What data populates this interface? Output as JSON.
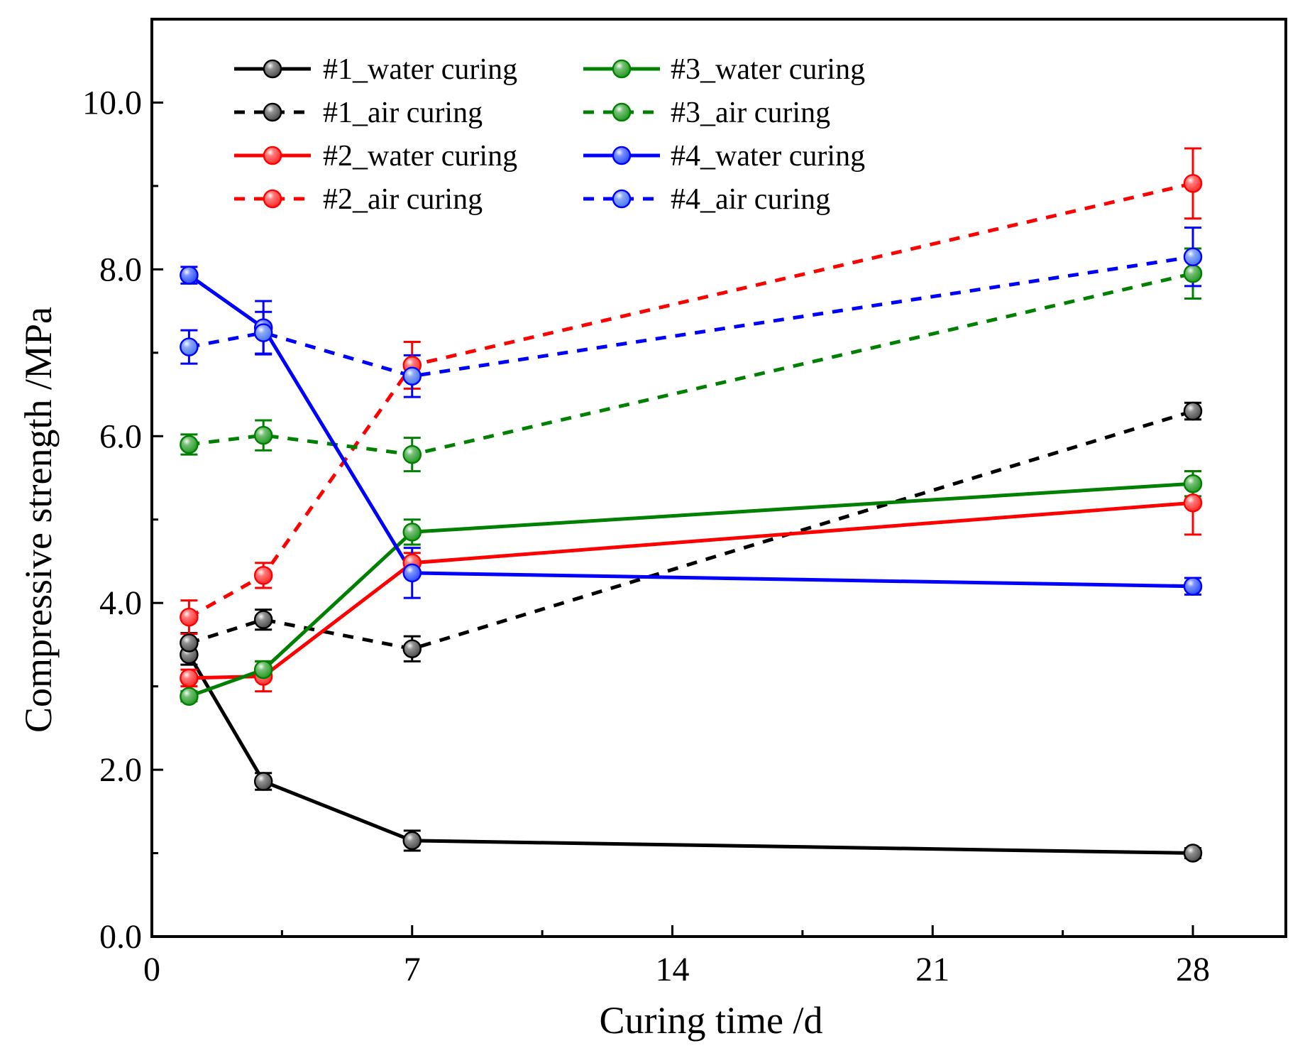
{
  "chart_data": {
    "type": "line",
    "title": "",
    "xlabel": "Curing time /d",
    "ylabel": "Compressive strength /MPa",
    "xlim": [
      0,
      30.5
    ],
    "ylim": [
      0,
      11
    ],
    "xticks": [
      0,
      7,
      14,
      21,
      28
    ],
    "xtick_labels": [
      "0",
      "7",
      "14",
      "21",
      "28"
    ],
    "xminor": [
      3.5,
      10.5,
      17.5,
      24.5
    ],
    "yticks": [
      0,
      2,
      4,
      6,
      8,
      10
    ],
    "ytick_labels": [
      "0.0",
      "2.0",
      "4.0",
      "6.0",
      "8.0",
      "10.0"
    ],
    "yminor": [
      1,
      3,
      5,
      7,
      9
    ],
    "grid": false,
    "legend_position": "top-left",
    "series": [
      {
        "name": "#1_water curing",
        "color": "#000000",
        "marker": "#555555",
        "style": "solid",
        "x": [
          1,
          3,
          7,
          28
        ],
        "y": [
          3.38,
          1.86,
          1.15,
          1.0
        ],
        "err": [
          0.12,
          0.1,
          0.12,
          0.06
        ]
      },
      {
        "name": "#1_air curing",
        "color": "#000000",
        "marker": "#555555",
        "style": "dotted",
        "x": [
          1,
          3,
          7,
          28
        ],
        "y": [
          3.52,
          3.8,
          3.45,
          6.3
        ],
        "err": [
          0.12,
          0.12,
          0.15,
          0.1
        ]
      },
      {
        "name": "#2_water curing",
        "color": "#ff0000",
        "marker": "#ff3333",
        "style": "solid",
        "x": [
          1,
          3,
          7,
          28
        ],
        "y": [
          3.1,
          3.12,
          4.48,
          5.2
        ],
        "err": [
          0.1,
          0.18,
          0.12,
          0.38
        ]
      },
      {
        "name": "#2_air curing",
        "color": "#ff0000",
        "marker": "#ff3333",
        "style": "dotted",
        "x": [
          1,
          3,
          7,
          28
        ],
        "y": [
          3.83,
          4.33,
          6.85,
          9.03
        ],
        "err": [
          0.2,
          0.15,
          0.28,
          0.42
        ]
      },
      {
        "name": "#3_water curing",
        "color": "#008000",
        "marker": "#2e9e2e",
        "style": "solid",
        "x": [
          1,
          3,
          7,
          28
        ],
        "y": [
          2.88,
          3.2,
          4.85,
          5.43
        ],
        "err": [
          0.06,
          0.1,
          0.15,
          0.15
        ]
      },
      {
        "name": "#3_air curing",
        "color": "#008000",
        "marker": "#2e9e2e",
        "style": "dotted",
        "x": [
          1,
          3,
          7,
          28
        ],
        "y": [
          5.9,
          6.01,
          5.78,
          7.95
        ],
        "err": [
          0.12,
          0.18,
          0.2,
          0.3
        ]
      },
      {
        "name": "#4_water curing",
        "color": "#0000ff",
        "marker": "#3355ff",
        "style": "solid",
        "x": [
          1,
          3,
          7,
          28
        ],
        "y": [
          7.93,
          7.3,
          4.36,
          4.2
        ],
        "err": [
          0.1,
          0.32,
          0.3,
          0.1
        ]
      },
      {
        "name": "#4_air curing",
        "color": "#0000ff",
        "marker": "#4f7cf0",
        "style": "dotted",
        "x": [
          1,
          3,
          7,
          28
        ],
        "y": [
          7.07,
          7.24,
          6.72,
          8.15
        ],
        "err": [
          0.2,
          0.25,
          0.25,
          0.35
        ]
      }
    ]
  }
}
